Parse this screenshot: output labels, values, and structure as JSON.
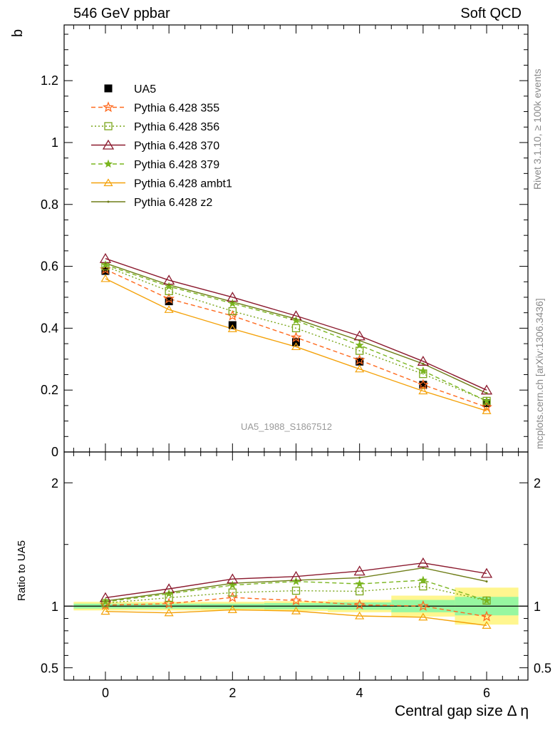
{
  "header": {
    "left": "546 GeV ppbar",
    "right": "Soft QCD"
  },
  "side_text": {
    "rivet": "Rivet 3.1.10, ≥ 100k events",
    "mcplots": "mcplots.cern.ch [arXiv:1306.3436]"
  },
  "watermark": "UA5_1988_S1867512",
  "colors": {
    "data": "#000000",
    "p355": "#ff6a1f",
    "p356": "#7aa51a",
    "p370": "#8b1a2e",
    "p379": "#7ab51f",
    "ambt1": "#f4a20a",
    "z2": "#6e7d17",
    "band_yellow": "#fff68f",
    "band_green": "#97f7a0"
  },
  "chart_data": [
    {
      "type": "line",
      "panel": "main",
      "ylabel": "b",
      "ylim": [
        0,
        1.38
      ],
      "xlim": [
        -0.65,
        6.65
      ],
      "y_ticks": [
        {
          "v": 0,
          "label": "0"
        },
        {
          "v": 0.2,
          "label": "0.2"
        },
        {
          "v": 0.4,
          "label": "0.4"
        },
        {
          "v": 0.6,
          "label": "0.6"
        },
        {
          "v": 0.8,
          "label": "0.8"
        },
        {
          "v": 1.0,
          "label": "1"
        },
        {
          "v": 1.2,
          "label": "1.2"
        }
      ],
      "legend_position": "top-left",
      "x": [
        0,
        1,
        2,
        3,
        4,
        5,
        6
      ],
      "series": [
        {
          "key": "ua5",
          "name": "UA5",
          "values": [
            0.585,
            0.487,
            0.41,
            0.355,
            0.292,
            0.217,
            0.158
          ],
          "errors": [
            0.01,
            0.01,
            0.01,
            0.01,
            0.01,
            0.012,
            0.012
          ],
          "style": "data"
        },
        {
          "key": "p355",
          "name": "Pythia 6.428 355",
          "values": [
            0.59,
            0.495,
            0.44,
            0.37,
            0.297,
            0.217,
            0.145
          ],
          "style": "dashed",
          "marker": "star"
        },
        {
          "key": "p356",
          "name": "Pythia 6.428 356",
          "values": [
            0.6,
            0.52,
            0.455,
            0.4,
            0.327,
            0.252,
            0.165
          ],
          "style": "dotted",
          "marker": "square"
        },
        {
          "key": "p370",
          "name": "Pythia 6.428 370",
          "values": [
            0.625,
            0.555,
            0.5,
            0.44,
            0.375,
            0.293,
            0.2
          ],
          "style": "solid",
          "marker": "triangle"
        },
        {
          "key": "p379",
          "name": "Pythia 6.428 379",
          "values": [
            0.605,
            0.535,
            0.48,
            0.425,
            0.345,
            0.262,
            0.165
          ],
          "style": "dashed",
          "marker": "star-small"
        },
        {
          "key": "ambt1",
          "name": "Pythia 6.428 ambt1",
          "values": [
            0.56,
            0.46,
            0.398,
            0.34,
            0.268,
            0.197,
            0.133
          ],
          "style": "solid",
          "marker": "triangle-small"
        },
        {
          "key": "z2",
          "name": "Pythia 6.428 z2",
          "values": [
            0.61,
            0.54,
            0.485,
            0.43,
            0.36,
            0.285,
            0.19
          ],
          "style": "solid",
          "marker": "dot"
        }
      ]
    },
    {
      "type": "line",
      "panel": "ratio",
      "xlabel": "Central gap size Δ η",
      "ylabel": "Ratio to UA5",
      "ylim": [
        0.4,
        2.25
      ],
      "xlim": [
        -0.65,
        6.65
      ],
      "x_ticks": [
        {
          "v": 0,
          "label": "0"
        },
        {
          "v": 2,
          "label": "2"
        },
        {
          "v": 4,
          "label": "4"
        },
        {
          "v": 6,
          "label": "6"
        }
      ],
      "y_ticks": [
        {
          "v": 0.5,
          "label": "0.5"
        },
        {
          "v": 1,
          "label": "1"
        },
        {
          "v": 2,
          "label": "2"
        }
      ],
      "uncertainty_bands": {
        "x_edges": [
          -0.5,
          0.5,
          1.5,
          2.5,
          3.5,
          4.5,
          5.5,
          6.5
        ],
        "yellow_halfwidth": [
          0.035,
          0.035,
          0.035,
          0.04,
          0.05,
          0.085,
          0.15
        ],
        "green_halfwidth": [
          0.02,
          0.02,
          0.02,
          0.025,
          0.03,
          0.05,
          0.075
        ]
      },
      "x": [
        0,
        1,
        2,
        3,
        4,
        5,
        6
      ],
      "series": [
        {
          "key": "p355",
          "name": "Pythia 6.428 355",
          "values": [
            1.008,
            1.02,
            1.07,
            1.045,
            1.01,
            1.0,
            0.915
          ]
        },
        {
          "key": "p356",
          "name": "Pythia 6.428 356",
          "values": [
            1.025,
            1.068,
            1.11,
            1.125,
            1.12,
            1.16,
            1.045
          ]
        },
        {
          "key": "p370",
          "name": "Pythia 6.428 370",
          "values": [
            1.068,
            1.14,
            1.22,
            1.24,
            1.284,
            1.35,
            1.265
          ]
        },
        {
          "key": "p379",
          "name": "Pythia 6.428 379",
          "values": [
            1.035,
            1.1,
            1.17,
            1.2,
            1.18,
            1.21,
            1.045
          ]
        },
        {
          "key": "ambt1",
          "name": "Pythia 6.428 ambt1",
          "values": [
            0.957,
            0.945,
            0.97,
            0.96,
            0.92,
            0.91,
            0.843
          ]
        },
        {
          "key": "z2",
          "name": "Pythia 6.428 z2",
          "values": [
            1.042,
            1.11,
            1.185,
            1.21,
            1.23,
            1.31,
            1.2
          ]
        }
      ]
    }
  ]
}
